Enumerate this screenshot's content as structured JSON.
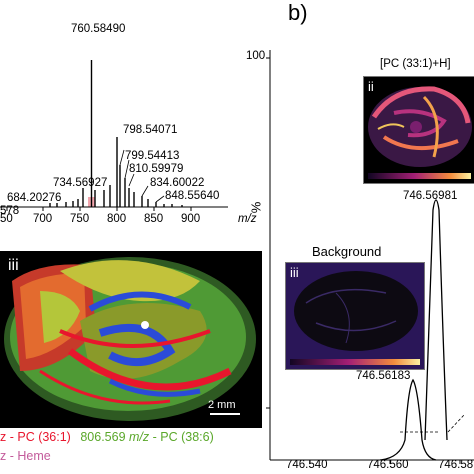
{
  "panel_b_label": "b)",
  "spectrum_a": {
    "peak_labels": [
      "760.58490",
      "798.54071",
      "799.54413",
      "810.59979",
      "734.56927",
      "834.60022",
      "684.20276",
      "848.55640",
      "578"
    ],
    "x_ticks": [
      "50",
      "700",
      "750",
      "800",
      "850",
      "900"
    ],
    "x_unit": "m/z"
  },
  "image_iii_a": {
    "label": "iii",
    "scale_bar": "2 mm"
  },
  "legend_a": {
    "line1_red": "z - PC (36:1)",
    "line1_green_mz": "806.569",
    "line1_green_unit": "m/z",
    "line1_green_name": "- PC (38:6)",
    "line2": "z - Heme"
  },
  "spectrum_b": {
    "y_ticks": [
      "100",
      "0"
    ],
    "y_unit": "%",
    "x_ticks": [
      "746.540",
      "746.560",
      "746.58"
    ],
    "peak_label_main": "746.56981",
    "peak_label_bg": "746.56183",
    "title_ion": "[PC (33:1)+H]",
    "inset_ii_label": "ii",
    "inset_iii_label": "iii",
    "inset_iii_title": "Background"
  },
  "colors": {
    "red": "#e8162d",
    "green": "#49b73b",
    "blue": "#2b4bd8",
    "legend_red": "#e8162d",
    "legend_green": "#5aa72a",
    "legend_pink": "#c35b9b"
  }
}
